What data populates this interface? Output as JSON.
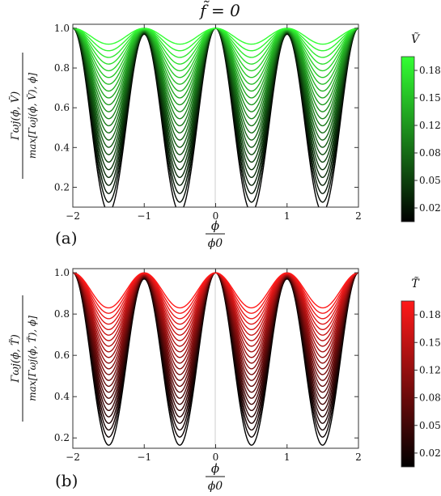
{
  "figure_title": "f̃ = 0",
  "chart_data": [
    {
      "type": "line",
      "panel_label": "(a)",
      "xlabel_num": "ϕ",
      "xlabel_den": "ϕ0",
      "ylabel_num": "Γωj(ϕ, Ṽ)",
      "ylabel_den": "max[Γωj(ϕ, Ṽ), ϕ]",
      "xlim": [
        -2,
        2
      ],
      "ylim": [
        0.1,
        1.02
      ],
      "xticks": [
        "−2",
        "−1",
        "0",
        "1",
        "2"
      ],
      "yticks": [
        "0.2",
        "0.4",
        "0.6",
        "0.8",
        "1.0"
      ],
      "ytick_values": [
        0.2,
        0.4,
        0.6,
        0.8,
        1.0
      ],
      "grid": false,
      "colorbar": {
        "label": "Ṽ",
        "ticks": [
          "0.024",
          "0.056",
          "0.088",
          "0.120",
          "0.152",
          "0.184"
        ],
        "tick_values": [
          0.024,
          0.056,
          0.088,
          0.12,
          0.152,
          0.184
        ],
        "range": [
          0.008,
          0.2
        ],
        "color_low": "#000000",
        "color_high": "#33ff33"
      },
      "family": {
        "param_min": 0.008,
        "param_max": 0.2,
        "num_curves": 24,
        "min_value_at_low_param": 0.09,
        "min_value_at_high_param": 0.92,
        "local_max_at_odd_x": 0.97
      }
    },
    {
      "type": "line",
      "panel_label": "(b)",
      "xlabel_num": "ϕ",
      "xlabel_den": "ϕ0",
      "ylabel_num": "Γωj(ϕ, T̃)",
      "ylabel_den": "max[Γωj(ϕ, T̃), ϕ]",
      "xlim": [
        -2,
        2
      ],
      "ylim": [
        0.15,
        1.02
      ],
      "xticks": [
        "−2",
        "−1",
        "0",
        "1",
        "2"
      ],
      "yticks": [
        "0.2",
        "0.4",
        "0.6",
        "0.8",
        "1.0"
      ],
      "ytick_values": [
        0.2,
        0.4,
        0.6,
        0.8,
        1.0
      ],
      "grid": false,
      "colorbar": {
        "label": "T̃",
        "ticks": [
          "0.024",
          "0.056",
          "0.088",
          "0.120",
          "0.152",
          "0.184"
        ],
        "tick_values": [
          0.024,
          0.056,
          0.088,
          0.12,
          0.152,
          0.184
        ],
        "range": [
          0.008,
          0.2
        ],
        "color_low": "#000000",
        "color_high": "#ff1a1a"
      },
      "family": {
        "param_min": 0.008,
        "param_max": 0.2,
        "num_curves": 24,
        "min_value_at_low_param": 0.18,
        "min_value_at_high_param": 0.83,
        "local_max_at_odd_x": 0.97
      }
    }
  ]
}
